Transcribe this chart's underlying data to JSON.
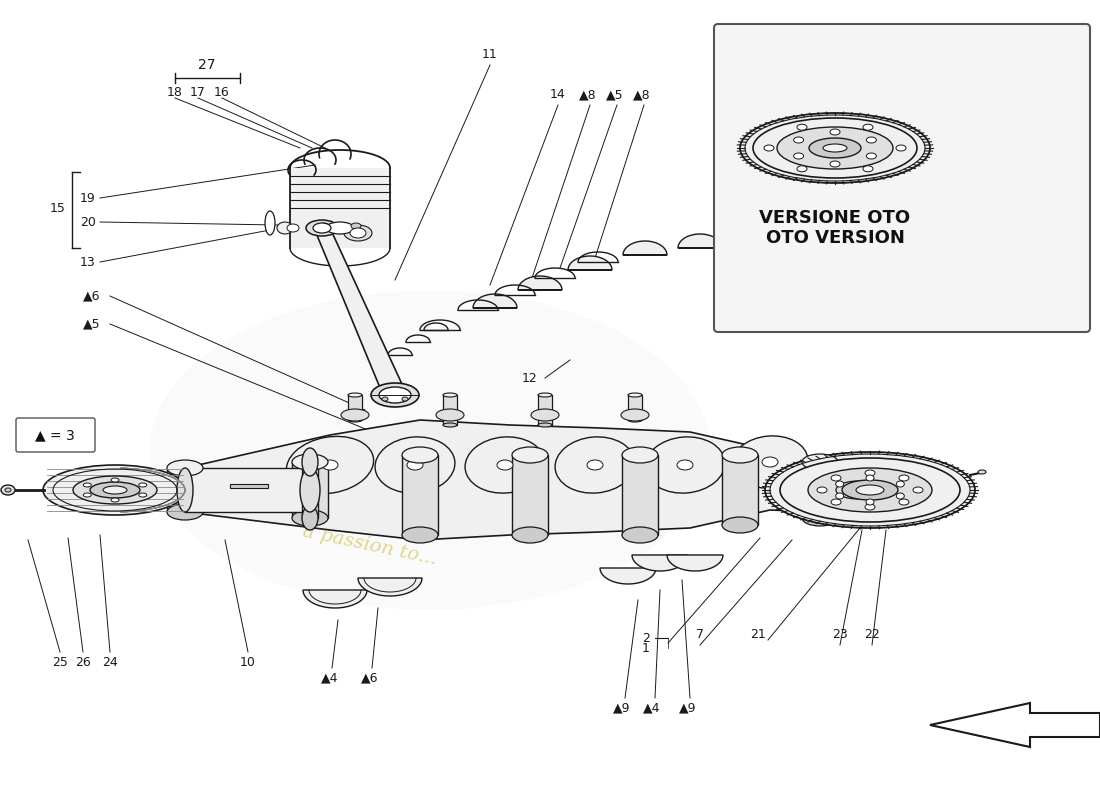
{
  "bg_color": "#ffffff",
  "dc": "#1a1a1a",
  "lc": "#888888",
  "fill_light": "#f0f0f0",
  "fill_mid": "#e0e0e0",
  "fill_dark": "#cccccc",
  "fill_white": "#ffffff",
  "fill_yellow": "#f5f0d0",
  "box_text_line1": "VERSIONE OTO",
  "box_text_line2": "OTO VERSION",
  "legend_text": "▲ = 3",
  "watermark1": "a passion to...",
  "figsize": [
    11.0,
    8.0
  ],
  "dpi": 100
}
